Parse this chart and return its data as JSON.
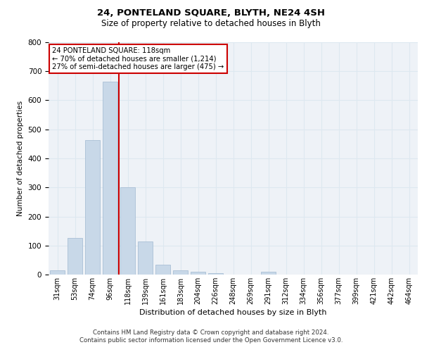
{
  "title1": "24, PONTELAND SQUARE, BLYTH, NE24 4SH",
  "title2": "Size of property relative to detached houses in Blyth",
  "xlabel": "Distribution of detached houses by size in Blyth",
  "ylabel": "Number of detached properties",
  "footer1": "Contains HM Land Registry data © Crown copyright and database right 2024.",
  "footer2": "Contains public sector information licensed under the Open Government Licence v3.0.",
  "bar_labels": [
    "31sqm",
    "53sqm",
    "74sqm",
    "96sqm",
    "118sqm",
    "139sqm",
    "161sqm",
    "183sqm",
    "204sqm",
    "226sqm",
    "248sqm",
    "269sqm",
    "291sqm",
    "312sqm",
    "334sqm",
    "356sqm",
    "377sqm",
    "399sqm",
    "421sqm",
    "442sqm",
    "464sqm"
  ],
  "bar_values": [
    15,
    125,
    462,
    665,
    300,
    115,
    35,
    15,
    10,
    5,
    0,
    0,
    10,
    0,
    0,
    0,
    0,
    0,
    0,
    0,
    0
  ],
  "property_line_index": 4,
  "property_label": "24 PONTELAND SQUARE: 118sqm",
  "pct_smaller": "70%",
  "n_smaller": "1,214",
  "pct_larger": "27%",
  "n_larger": "475",
  "bar_color": "#c8d8e8",
  "bar_edge_color": "#a0b8d0",
  "line_color": "#cc0000",
  "grid_color": "#dde8f0",
  "bg_color": "#eef2f7",
  "ylim": [
    0,
    800
  ],
  "yticks": [
    0,
    100,
    200,
    300,
    400,
    500,
    600,
    700,
    800
  ]
}
